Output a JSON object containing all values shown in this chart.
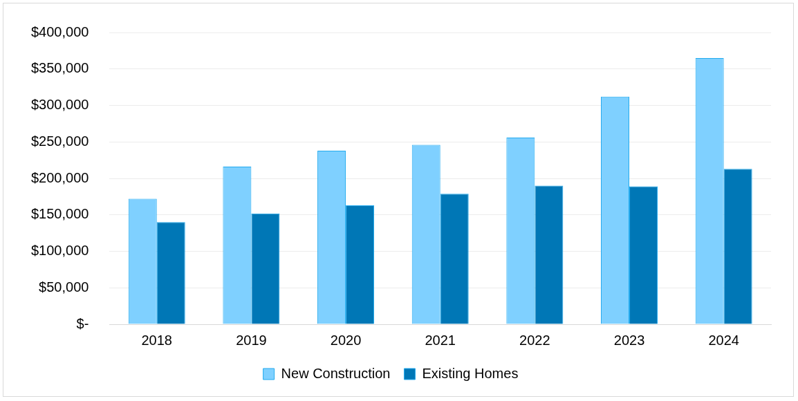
{
  "chart_data": {
    "type": "bar",
    "categories": [
      "2018",
      "2019",
      "2020",
      "2021",
      "2022",
      "2023",
      "2024"
    ],
    "series": [
      {
        "name": "New Construction",
        "color": "#7fd0ff",
        "values": [
          172000,
          216000,
          238000,
          246000,
          256000,
          312000,
          365000
        ]
      },
      {
        "name": "Existing Homes",
        "color": "#0077b6",
        "values": [
          140000,
          152000,
          163000,
          179000,
          190000,
          189000,
          213000
        ]
      }
    ],
    "ylim": [
      0,
      400000
    ],
    "yticks": [
      {
        "value": 0,
        "label": "$-"
      },
      {
        "value": 50000,
        "label": "$50,000"
      },
      {
        "value": 100000,
        "label": "$100,000"
      },
      {
        "value": 150000,
        "label": "$150,000"
      },
      {
        "value": 200000,
        "label": "$200,000"
      },
      {
        "value": 250000,
        "label": "$250,000"
      },
      {
        "value": 300000,
        "label": "$300,000"
      },
      {
        "value": 350000,
        "label": "$350,000"
      },
      {
        "value": 400000,
        "label": "$400,000"
      }
    ],
    "grid": "y",
    "legend": "bottom"
  }
}
